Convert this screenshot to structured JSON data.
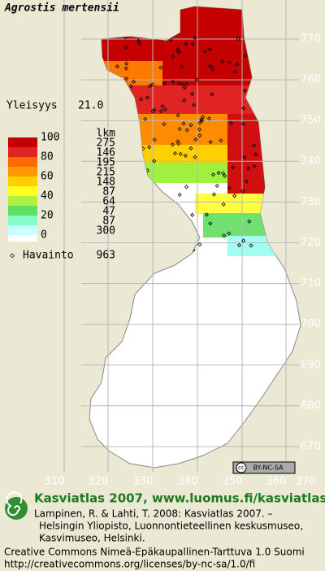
{
  "title": "Agrostis mertensii",
  "frequency": {
    "label": "Yleisyys",
    "value": "21.0"
  },
  "legend": {
    "scale_labels": [
      "100",
      "80",
      "60",
      "40",
      "20",
      "0"
    ],
    "count_header": "lkm",
    "counts": [
      "275",
      "146",
      "195",
      "215",
      "148",
      "87",
      "64",
      "47",
      "87",
      "300"
    ]
  },
  "observations": {
    "label": "Havainto",
    "count": "963"
  },
  "grid_labels": {
    "north": [
      "770",
      "760",
      "750",
      "740",
      "730",
      "720",
      "710",
      "700",
      "690",
      "680",
      "670"
    ],
    "east": [
      "310",
      "320",
      "330",
      "340",
      "350",
      "360",
      "370"
    ]
  },
  "license_badge": {
    "cc": "cc",
    "text": "BY-NC-SA"
  },
  "footer": {
    "title": "Kasviatlas 2007, www.luomus.fi/kasviatlas",
    "citation": [
      "Lampinen, R. & Lahti, T. 2008: Kasviatlas 2007. –",
      "Helsingin Yliopisto, Luonnontieteellinen keskusmuseo,",
      "Kasvimuseo, Helsinki."
    ],
    "license": [
      "Creative Commons Nimeä-Epäkaupallinen-Tarttuva 1.0 Suomi",
      "http://creativecommons.org/licenses/by-nc-sa/1.0/fi"
    ]
  }
}
